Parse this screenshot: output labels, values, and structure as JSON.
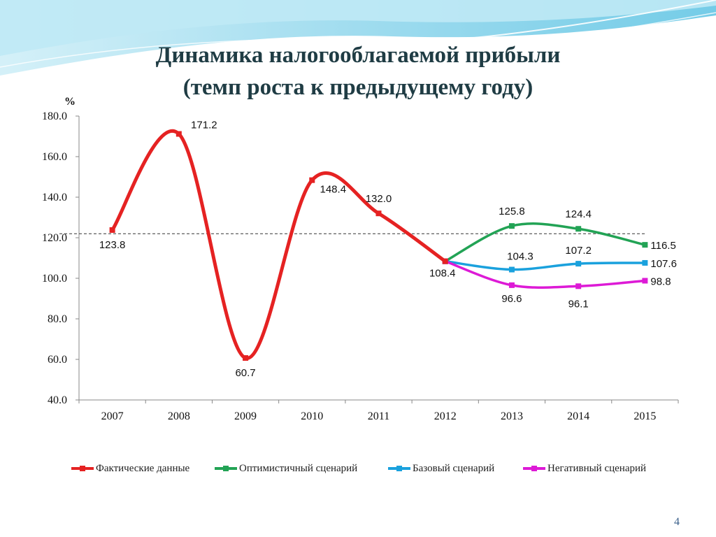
{
  "slide": {
    "title_line1": "Динамика налогооблагаемой прибыли",
    "title_line2": "(темп роста к предыдущему году)",
    "page_number": "4"
  },
  "colors": {
    "actual": "#e52222",
    "optimistic": "#22a355",
    "base": "#1aa1dd",
    "negative": "#dd1ad6",
    "header_wave": "#7fd0ea"
  },
  "chart_data": {
    "type": "line",
    "unit_label": "%",
    "x": [
      "2007",
      "2008",
      "2009",
      "2010",
      "2011",
      "2012",
      "2013",
      "2014",
      "2015"
    ],
    "ylim": [
      40,
      180
    ],
    "yticks": [
      "40.0",
      "60.0",
      "80.0",
      "100.0",
      "120.0",
      "140.0",
      "160.0",
      "180.0"
    ],
    "reference_line": 122,
    "series": [
      {
        "key": "actual",
        "name": "Фактические данные",
        "values": [
          123.8,
          171.2,
          60.7,
          148.4,
          132.0,
          108.4,
          null,
          null,
          null
        ],
        "labels": [
          "123.8",
          "171.2",
          "60.7",
          "148.4",
          "132.0",
          "108.4",
          null,
          null,
          null
        ]
      },
      {
        "key": "optimistic",
        "name": "Оптимистичный сценарий",
        "values": [
          null,
          null,
          null,
          null,
          null,
          108.4,
          125.8,
          124.4,
          116.5
        ],
        "labels": [
          null,
          null,
          null,
          null,
          null,
          null,
          "125.8",
          "124.4",
          "116.5"
        ]
      },
      {
        "key": "base",
        "name": "Базовый сценарий",
        "values": [
          null,
          null,
          null,
          null,
          null,
          108.4,
          104.3,
          107.2,
          107.6
        ],
        "labels": [
          null,
          null,
          null,
          null,
          null,
          null,
          "104.3",
          "107.2",
          "107.6"
        ]
      },
      {
        "key": "negative",
        "name": "Негативный сценарий",
        "values": [
          null,
          null,
          null,
          null,
          null,
          108.4,
          96.6,
          96.1,
          98.8
        ],
        "labels": [
          null,
          null,
          null,
          null,
          null,
          null,
          "96.6",
          "96.1",
          "98.8"
        ]
      }
    ]
  }
}
